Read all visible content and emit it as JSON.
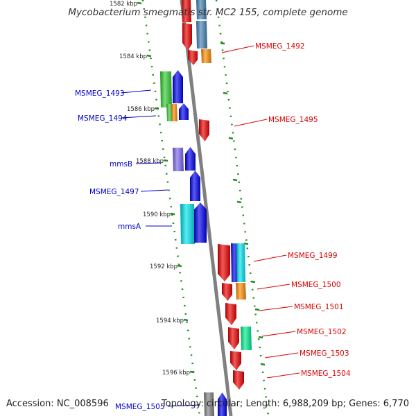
{
  "map": {
    "title": "Mycobacterium smegmatis str. MC2 155, complete genome",
    "footer": {
      "accession": "Accession: NC_008596",
      "summary": "Topology: circular; Length: 6,988,209 bp; Genes: 6,770"
    },
    "colors": {
      "red": "#ee0000",
      "blue": "#0000ee",
      "steelblue": "#4682b4",
      "orange": "#ff8c00",
      "green": "#33cc33",
      "lavender": "#7b68ee",
      "cyan": "#00e5ee",
      "teal": "#00ee90",
      "tick": "#228b22",
      "leftLabel": "#0000cc",
      "rightLabel": "#dd0000",
      "backbone": "#808080"
    },
    "ticks": [
      {
        "label": "1582 kbp"
      },
      {
        "label": "1584 kbp"
      },
      {
        "label": "1586 kbp"
      },
      {
        "label": "1588 kbp"
      },
      {
        "label": "1590 kbp"
      },
      {
        "label": "1592 kbp"
      },
      {
        "label": "1594 kbp"
      },
      {
        "label": "1596 kbp"
      }
    ],
    "genes_left": [
      {
        "name": "MSMEG_1493",
        "color": "green"
      },
      {
        "name": "MSMEG_1494",
        "color": "green"
      },
      {
        "name": "mmsB",
        "color": "lavender"
      },
      {
        "name": "MSMEG_1497",
        "color": "blue"
      },
      {
        "name": "mmsA",
        "color": "cyan"
      },
      {
        "name": "MSMEG_1505",
        "color": "blue"
      }
    ],
    "genes_right": [
      {
        "name": "MSMEG_1492",
        "color": "red"
      },
      {
        "name": "MSMEG_1495",
        "color": "red"
      },
      {
        "name": "MSMEG_1499",
        "color": "red"
      },
      {
        "name": "MSMEG_1500",
        "color": "orange"
      },
      {
        "name": "MSMEG_1501",
        "color": "red"
      },
      {
        "name": "MSMEG_1502",
        "color": "red"
      },
      {
        "name": "MSMEG_1503",
        "color": "red"
      },
      {
        "name": "MSMEG_1504",
        "color": "red"
      }
    ]
  }
}
